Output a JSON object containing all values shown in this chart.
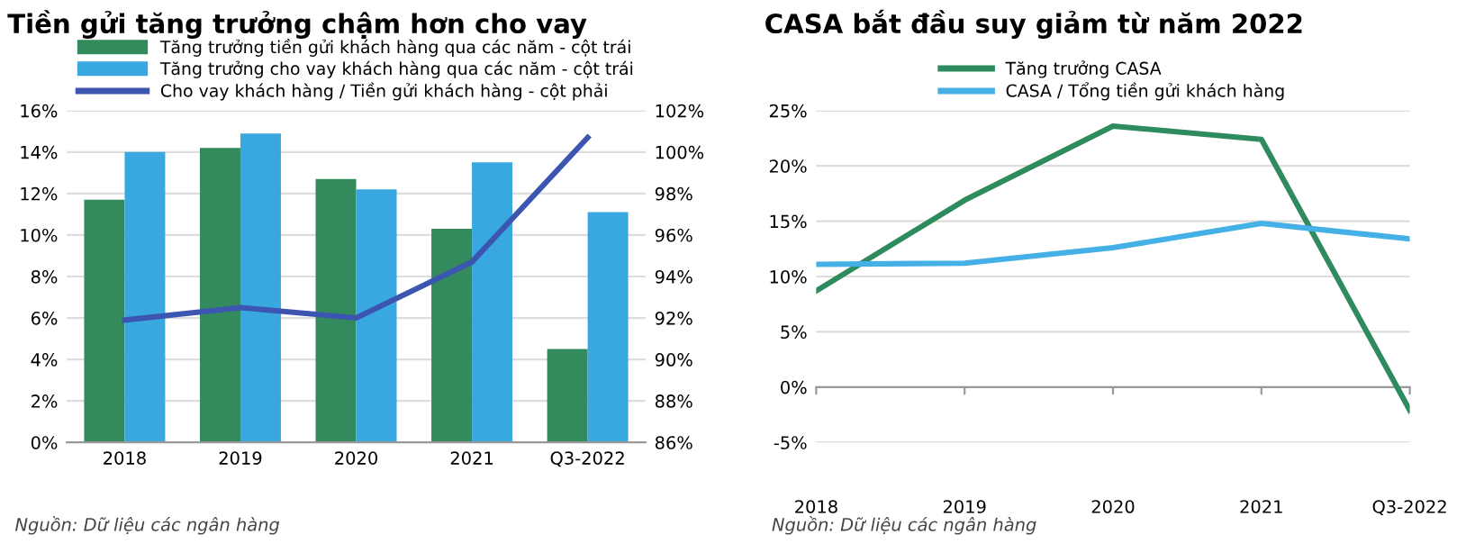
{
  "chart_data": [
    {
      "type": "bar",
      "title": "Tiền gửi tăng trưởng chậm hơn cho vay",
      "categories": [
        "2018",
        "2019",
        "2020",
        "2021",
        "Q3-2022"
      ],
      "series": [
        {
          "name": "Tăng trưởng tiền gửi khách hàng qua các năm - cột trái",
          "color": "#338a5c",
          "values": [
            11.7,
            14.2,
            12.7,
            10.3,
            4.5
          ]
        },
        {
          "name": "Tăng trưởng cho vay khách hàng qua các năm - cột trái",
          "color": "#3aa8e0",
          "values": [
            14.0,
            14.9,
            12.2,
            13.5,
            11.1
          ]
        },
        {
          "name": "Cho vay khách hàng / Tiền gửi khách hàng - cột phải",
          "color": "#3b55b0",
          "type": "line",
          "axis": "y2",
          "values": [
            91.9,
            92.5,
            92.0,
            94.7,
            100.7
          ]
        }
      ],
      "ylim": [
        0,
        16
      ],
      "yticks": [
        {
          "value": 0,
          "label": "0%"
        },
        {
          "value": 2,
          "label": "2%"
        },
        {
          "value": 4,
          "label": "4%"
        },
        {
          "value": 6,
          "label": "6%"
        },
        {
          "value": 8,
          "label": "8%"
        },
        {
          "value": 10,
          "label": "10%"
        },
        {
          "value": 12,
          "label": "12%"
        },
        {
          "value": 14,
          "label": "14%"
        },
        {
          "value": 16,
          "label": "16%"
        }
      ],
      "y2lim": [
        86,
        102
      ],
      "y2ticks": [
        {
          "value": 86,
          "label": "86%"
        },
        {
          "value": 88,
          "label": "88%"
        },
        {
          "value": 90,
          "label": "90%"
        },
        {
          "value": 92,
          "label": "92%"
        },
        {
          "value": 94,
          "label": "94%"
        },
        {
          "value": 96,
          "label": "96%"
        },
        {
          "value": 98,
          "label": "98%"
        },
        {
          "value": 100,
          "label": "100%"
        },
        {
          "value": 102,
          "label": "102%"
        }
      ],
      "grid": "y",
      "legend": "top",
      "annotations": [
        "Nguồn: Dữ liệu các ngân hàng"
      ]
    },
    {
      "type": "line",
      "title": "CASA bắt đầu suy giảm từ năm 2022",
      "categories": [
        "2018",
        "2019",
        "2020",
        "2021",
        "Q3-2022"
      ],
      "series": [
        {
          "name": "Tăng trưởng CASA",
          "color": "#2e8b5e",
          "values": [
            8.7,
            16.9,
            23.6,
            22.4,
            -2.1
          ]
        },
        {
          "name": "CASA / Tổng tiền gửi khách hàng",
          "color": "#45b0e6",
          "values": [
            11.1,
            11.2,
            12.6,
            14.8,
            13.4
          ]
        }
      ],
      "ylim": [
        -5,
        25
      ],
      "yticks": [
        {
          "value": -5,
          "label": "-5%"
        },
        {
          "value": 0,
          "label": "0%"
        },
        {
          "value": 5,
          "label": "5%"
        },
        {
          "value": 10,
          "label": "10%"
        },
        {
          "value": 15,
          "label": "15%"
        },
        {
          "value": 20,
          "label": "20%"
        },
        {
          "value": 25,
          "label": "25%"
        }
      ],
      "grid": "y",
      "legend": "top",
      "annotations": [
        "Nguồn: Dữ liệu các ngân hàng"
      ]
    }
  ]
}
